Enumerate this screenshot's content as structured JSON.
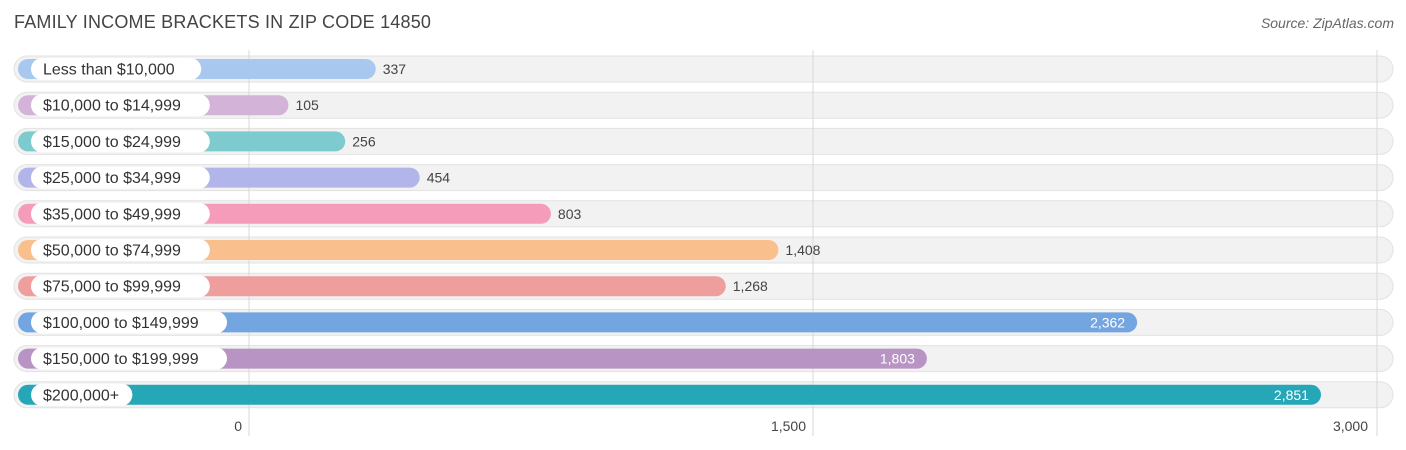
{
  "title": "FAMILY INCOME BRACKETS IN ZIP CODE 14850",
  "source": "Source: ZipAtlas.com",
  "chart_data": {
    "type": "bar",
    "orientation": "horizontal",
    "categories": [
      "Less than $10,000",
      "$10,000 to $14,999",
      "$15,000 to $24,999",
      "$25,000 to $34,999",
      "$35,000 to $49,999",
      "$50,000 to $74,999",
      "$75,000 to $99,999",
      "$100,000 to $149,999",
      "$150,000 to $199,999",
      "$200,000+"
    ],
    "values": [
      337,
      105,
      256,
      454,
      803,
      1408,
      1268,
      2362,
      1803,
      2851
    ],
    "value_labels": [
      "337",
      "105",
      "256",
      "454",
      "803",
      "1,408",
      "1,268",
      "2,362",
      "1,803",
      "2,851"
    ],
    "colors": [
      "#a9c8ef",
      "#d4b3d8",
      "#7ecbcf",
      "#b1b5ea",
      "#f59cbb",
      "#f9c08e",
      "#ee9e9c",
      "#73a5e1",
      "#b794c4",
      "#26a7b8"
    ],
    "xlim": [
      0,
      3000
    ],
    "xticks": [
      0,
      1500,
      3000
    ],
    "xtick_labels": [
      "0",
      "1,500",
      "3,000"
    ],
    "grid": true
  }
}
